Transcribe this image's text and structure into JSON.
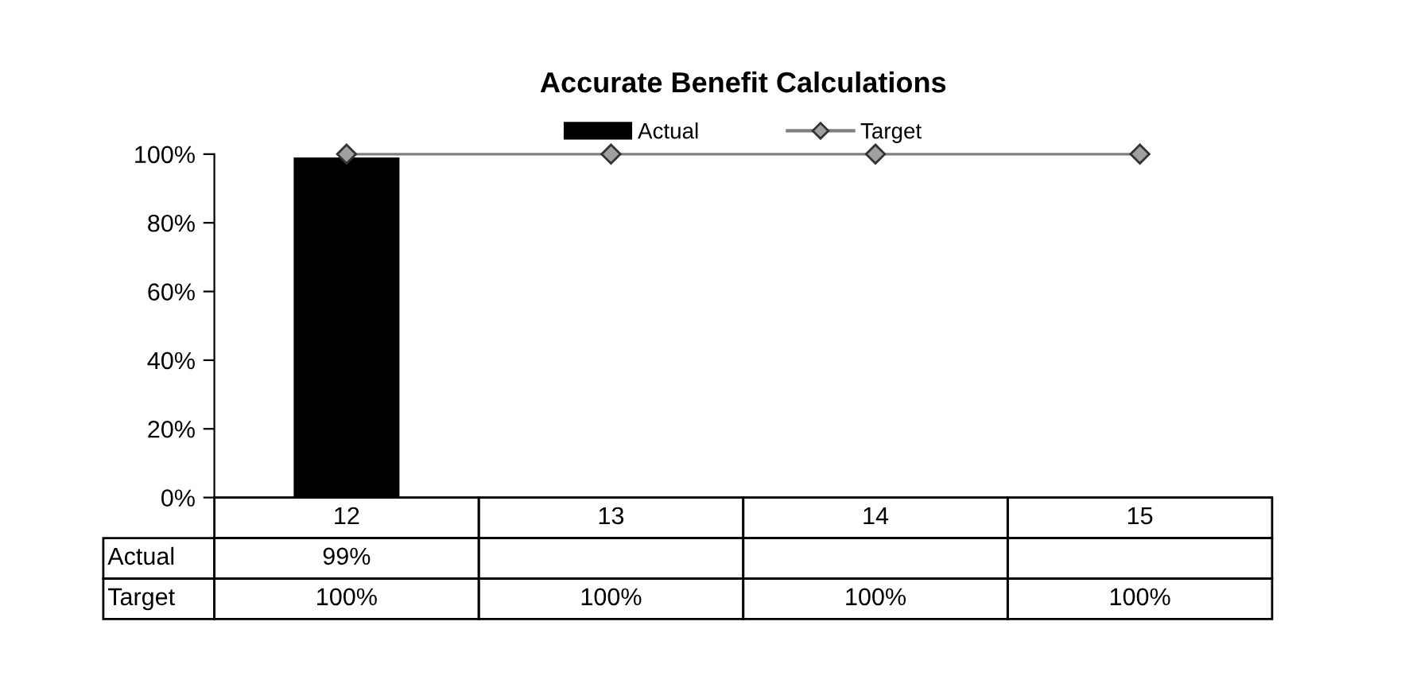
{
  "chart_data": {
    "type": "bar",
    "title": "Accurate Benefit Calculations",
    "categories": [
      "12",
      "13",
      "14",
      "15"
    ],
    "series": [
      {
        "name": "Actual",
        "color": "#000000",
        "values": [
          99,
          null,
          null,
          null
        ],
        "value_labels": [
          "99%",
          null,
          null,
          null
        ]
      },
      {
        "name": "Target",
        "type": "line",
        "color": "#808080",
        "marker": "diamond",
        "values": [
          100,
          100,
          100,
          100
        ],
        "value_labels": [
          "100%",
          "100%",
          "100%",
          "100%"
        ]
      }
    ],
    "ylim": [
      0,
      100
    ],
    "yticks": [
      {
        "value": 0,
        "label": "0%"
      },
      {
        "value": 20,
        "label": "20%"
      },
      {
        "value": 40,
        "label": "40%"
      },
      {
        "value": 60,
        "label": "60%"
      },
      {
        "value": 80,
        "label": "80%"
      },
      {
        "value": 100,
        "label": "100%"
      }
    ],
    "grid": false,
    "legend": "top"
  }
}
